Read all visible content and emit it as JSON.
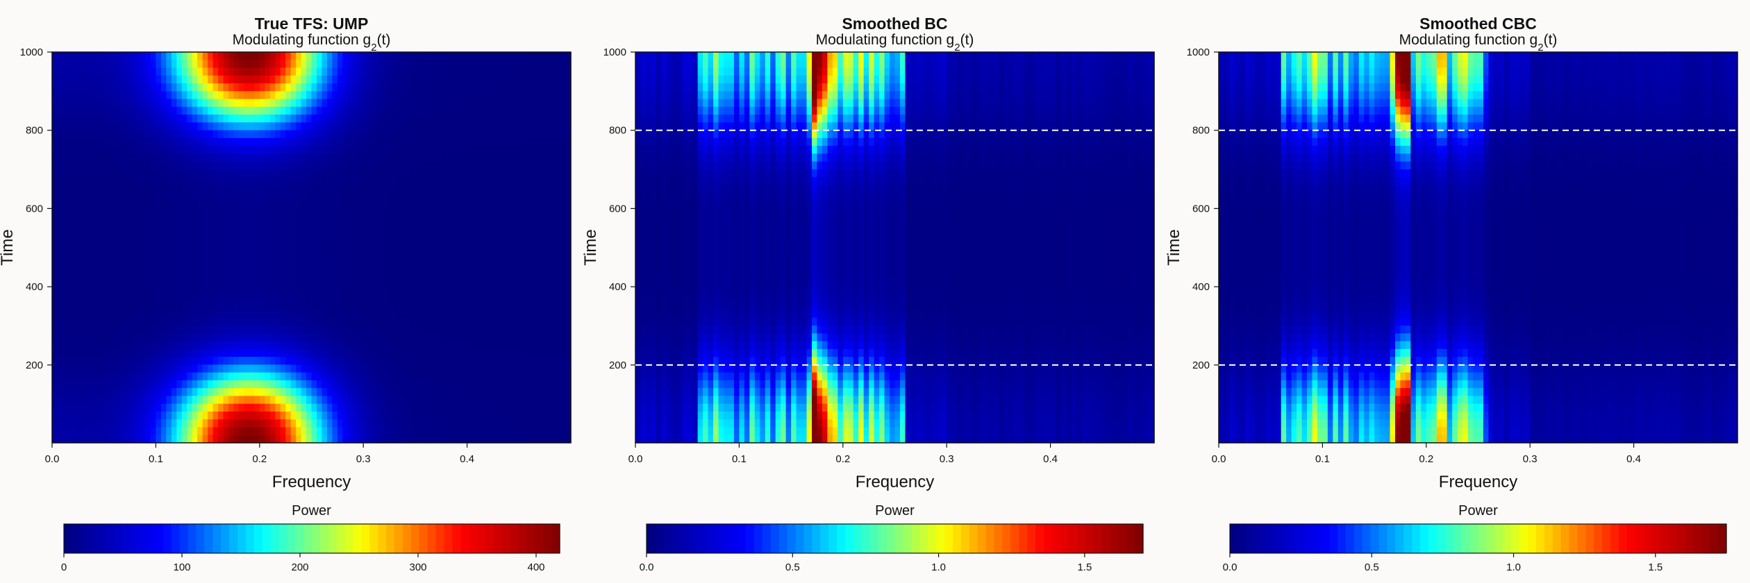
{
  "chart_data": [
    {
      "type": "heatmap",
      "title": "True TFS: UMP",
      "subtitle": "Modulating function g",
      "subtitle_sub": "2",
      "subtitle_tail": "(t)",
      "xlabel": "Frequency",
      "ylabel": "Time",
      "xlim": [
        0,
        0.5
      ],
      "ylim": [
        1,
        1000
      ],
      "x_ticks": [
        0.0,
        0.1,
        0.2,
        0.3,
        0.4
      ],
      "x_tick_labels": [
        "0.0",
        "0.1",
        "0.2",
        "0.3",
        "0.4"
      ],
      "y_ticks": [
        200,
        400,
        600,
        800,
        1000
      ],
      "y_tick_labels": [
        "200",
        "400",
        "600",
        "800",
        "1000"
      ],
      "peak_frequency": 0.19,
      "peak_time": [
        1,
        1000
      ],
      "max_power": 420,
      "colorbar": {
        "label": "Power",
        "range": [
          0,
          420
        ],
        "ticks": [
          0,
          100,
          200,
          300,
          400
        ],
        "tick_labels": [
          "0",
          "100",
          "200",
          "300",
          "400"
        ]
      },
      "palette": [
        "#00007f",
        "#0000ff",
        "#00ffff",
        "#ffff00",
        "#ff0000",
        "#7f0000"
      ]
    },
    {
      "type": "heatmap",
      "title": "Smoothed BC",
      "subtitle": "Modulating function g",
      "subtitle_sub": "2",
      "subtitle_tail": "(t)",
      "xlabel": "Frequency",
      "ylabel": "Time",
      "xlim": [
        0,
        0.5
      ],
      "ylim": [
        1,
        1000
      ],
      "x_ticks": [
        0.0,
        0.1,
        0.2,
        0.3,
        0.4
      ],
      "x_tick_labels": [
        "0.0",
        "0.1",
        "0.2",
        "0.3",
        "0.4"
      ],
      "y_ticks": [
        200,
        400,
        600,
        800,
        1000
      ],
      "y_tick_labels": [
        "200",
        "400",
        "600",
        "800",
        "1000"
      ],
      "reference_lines_time": [
        200,
        800
      ],
      "peak_frequency": 0.175,
      "max_power": 1.7,
      "colorbar": {
        "label": "Power",
        "range": [
          0,
          1.7
        ],
        "ticks": [
          0.0,
          0.5,
          1.0,
          1.5
        ],
        "tick_labels": [
          "0.0",
          "0.5",
          "1.0",
          "1.5"
        ]
      },
      "palette": [
        "#00007f",
        "#0000ff",
        "#00ffff",
        "#ffff00",
        "#ff0000",
        "#7f0000"
      ]
    },
    {
      "type": "heatmap",
      "title": "Smoothed CBC",
      "subtitle": "Modulating function g",
      "subtitle_sub": "2",
      "subtitle_tail": "(t)",
      "xlabel": "Frequency",
      "ylabel": "Time",
      "xlim": [
        0,
        0.5
      ],
      "ylim": [
        1,
        1000
      ],
      "x_ticks": [
        0.0,
        0.1,
        0.2,
        0.3,
        0.4
      ],
      "x_tick_labels": [
        "0.0",
        "0.1",
        "0.2",
        "0.3",
        "0.4"
      ],
      "y_ticks": [
        200,
        400,
        600,
        800,
        1000
      ],
      "y_tick_labels": [
        "200",
        "400",
        "600",
        "800",
        "1000"
      ],
      "reference_lines_time": [
        200,
        800
      ],
      "peak_frequency": 0.18,
      "max_power": 1.75,
      "colorbar": {
        "label": "Power",
        "range": [
          0,
          1.75
        ],
        "ticks": [
          0.0,
          0.5,
          1.0,
          1.5
        ],
        "tick_labels": [
          "0.0",
          "0.5",
          "1.0",
          "1.5"
        ]
      },
      "palette": [
        "#00007f",
        "#0000ff",
        "#00ffff",
        "#ffff00",
        "#ff0000",
        "#7f0000"
      ]
    }
  ]
}
